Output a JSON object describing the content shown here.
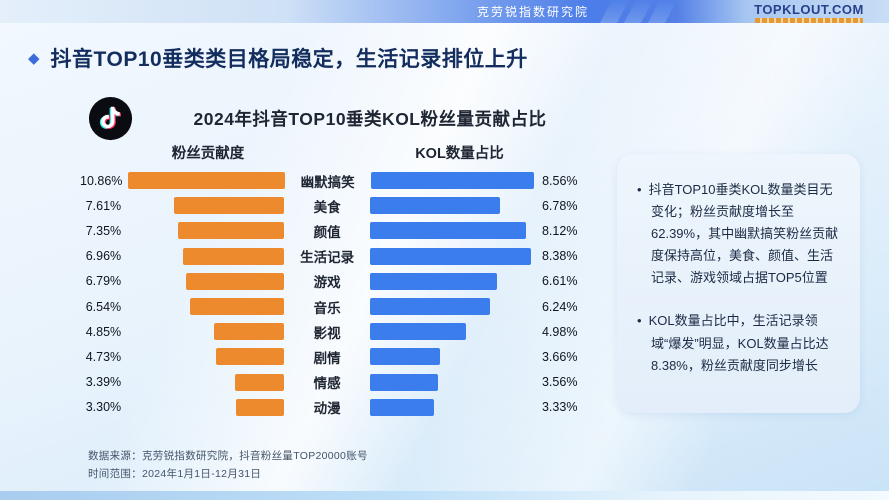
{
  "header": {
    "brand_text": "克劳锐指数研究院",
    "logo_text": "TOPKLOUT.COM"
  },
  "slide": {
    "title": "抖音TOP10垂类类目格局稳定，生活记录排位上升"
  },
  "chart": {
    "title": "2024年抖音TOP10垂类KOL粉丝量贡献占比",
    "left_header": "粉丝贡献度",
    "right_header": "KOL数量占比"
  },
  "chart_data": {
    "type": "bar",
    "orientation": "horizontal",
    "layout": "butterfly",
    "title": "2024年抖音TOP10垂类KOL粉丝量贡献占比",
    "categories": [
      "幽默搞笑",
      "美食",
      "颜值",
      "生活记录",
      "游戏",
      "音乐",
      "影视",
      "剧情",
      "情感",
      "动漫"
    ],
    "series": [
      {
        "name": "粉丝贡献度",
        "color": "#EE8A2E",
        "values": [
          10.86,
          7.61,
          7.35,
          6.96,
          6.79,
          6.54,
          4.85,
          4.73,
          3.39,
          3.3
        ]
      },
      {
        "name": "KOL数量占比",
        "color": "#3B7DED",
        "values": [
          8.56,
          6.78,
          8.12,
          8.38,
          6.61,
          6.24,
          4.98,
          3.66,
          3.56,
          3.33
        ]
      }
    ],
    "value_suffix": "%",
    "value_labels": true,
    "grid": false,
    "legend_position": "column-headers"
  },
  "insights": [
    "抖音TOP10垂类KOL数量类目无变化；粉丝贡献度增长至62.39%，其中幽默搞笑粉丝贡献度保持高位，美食、颜值、生活记录、游戏领域占据TOP5位置",
    "KOL数量占比中，生活记录领域“爆发”明显，KOL数量占比达8.38%，粉丝贡献度同步增长"
  ],
  "footer": {
    "source": "数据来源：克劳锐指数研究院，抖音粉丝量TOP20000账号",
    "period": "时间范围：2024年1月1日-12月31日"
  },
  "colors": {
    "orange_bar": "#EE8A2E",
    "blue_bar": "#3B7DED",
    "title_navy": "#132D5E",
    "topbar_blue": "#4C7DE8",
    "panel_bg": "#EAF2FB"
  }
}
